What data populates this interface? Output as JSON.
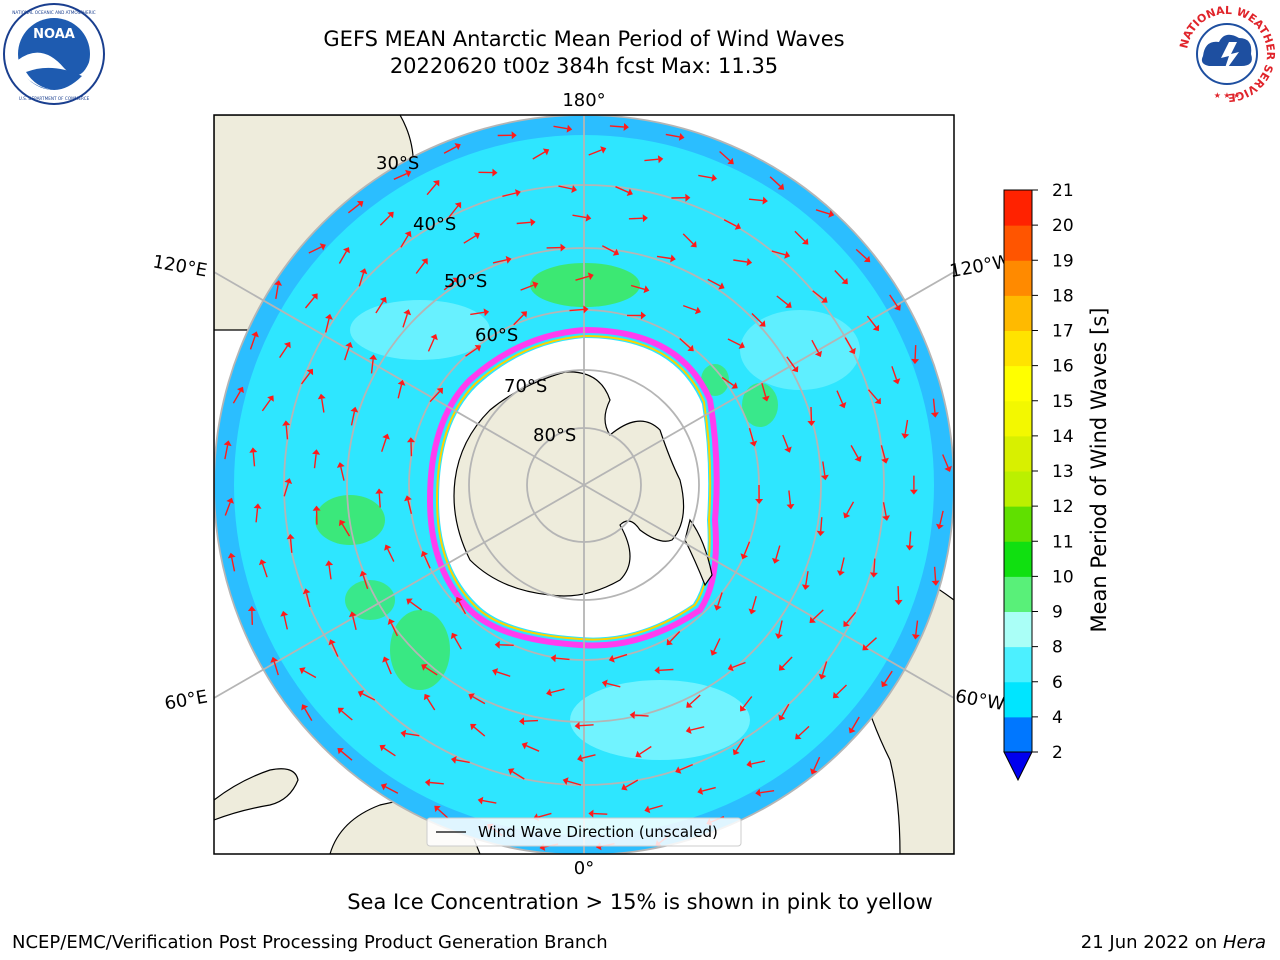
{
  "header": {
    "title_line1": "GEFS MEAN Antarctic Mean Period of Wind Waves",
    "title_line2": "20220620 t00z 384h fcst   Max: 11.35"
  },
  "logos": {
    "left": "NOAA",
    "left_ring_text": "NATIONAL OCEANIC AND ATMOSPHERIC ADMINISTRATION · U.S. DEPARTMENT OF COMMERCE",
    "right_ring_text": "NATIONAL WEATHER SERVICE"
  },
  "map": {
    "projection": "south-polar-stereographic",
    "longitude_labels": {
      "top": "180°",
      "upper_left": "120°E",
      "upper_right": "120°W",
      "lower_left": "60°E",
      "lower_right": "60°W",
      "bottom": "0°"
    },
    "latitude_labels": [
      "30°S",
      "40°S",
      "50°S",
      "60°S",
      "70°S",
      "80°S"
    ],
    "legend_text": "Wind Wave Direction (unscaled)",
    "land_color": "#eeecdc",
    "sea_ice_color": "#ffffff"
  },
  "colorbar": {
    "title": "Mean Period of Wind Waves [s]",
    "ticks": [
      "2",
      "4",
      "6",
      "8",
      "9",
      "10",
      "11",
      "12",
      "13",
      "14",
      "15",
      "16",
      "17",
      "18",
      "19",
      "20",
      "21"
    ],
    "colors": [
      "#0077ff",
      "#00e5ff",
      "#4cf0ff",
      "#aafff7",
      "#59f079",
      "#10e010",
      "#60e000",
      "#bbf000",
      "#d8f000",
      "#f3f800",
      "#ffff00",
      "#ffe300",
      "#ffba00",
      "#ff8a00",
      "#ff5500",
      "#ff2200",
      "#ff0000"
    ],
    "under_color": "#0000ee"
  },
  "caption": "Sea Ice Concentration > 15% is shown in pink to yellow",
  "footer": {
    "left": "NCEP/EMC/Verification Post Processing Product Generation Branch",
    "right_date": "21 Jun 2022 on ",
    "right_host": "Hera"
  }
}
